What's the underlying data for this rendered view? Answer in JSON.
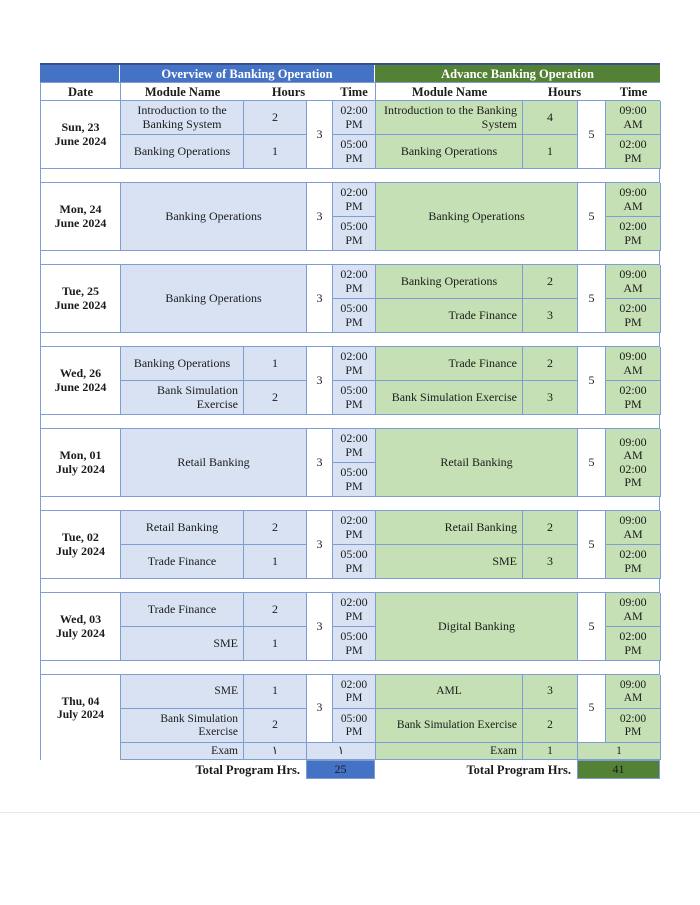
{
  "colors": {
    "header_blue": "#4472C4",
    "header_green": "#538135",
    "light_blue": "#D9E2F3",
    "light_green": "#C5E0B4",
    "total_blue": "#4472C4",
    "total_green": "#538135",
    "border": "#7F9DD4"
  },
  "header": {
    "left_title": "Overview of Banking Operation",
    "right_title": "Advance Banking Operation"
  },
  "columns": {
    "date": "Date",
    "module": "Module Name",
    "hours": "Hours",
    "time": "Time"
  },
  "groups": [
    {
      "date_lines": [
        "Sun, 23",
        "June 2024"
      ],
      "left": {
        "modules": [
          {
            "name": "Introduction to the Banking System",
            "hours": "2",
            "align": "center"
          },
          {
            "name": "Banking Operations",
            "hours": "1",
            "align": "center"
          }
        ],
        "merged": false,
        "total": "3",
        "times": [
          "02:00 PM",
          "05:00 PM"
        ],
        "times_merged": false
      },
      "right": {
        "modules": [
          {
            "name": "Introduction to the Banking System",
            "hours": "4",
            "align": "right"
          },
          {
            "name": "Banking Operations",
            "hours": "1",
            "align": "center"
          }
        ],
        "merged": false,
        "total": "5",
        "times": [
          "09:00 AM",
          "02:00 PM"
        ],
        "times_merged": false
      }
    },
    {
      "date_lines": [
        "Mon, 24",
        "June 2024"
      ],
      "left": {
        "modules": [
          {
            "name": "Banking Operations",
            "align": "center"
          }
        ],
        "merged": true,
        "total": "3",
        "times": [
          "02:00 PM",
          "05:00 PM"
        ],
        "times_merged": false
      },
      "right": {
        "modules": [
          {
            "name": "Banking Operations",
            "align": "center"
          }
        ],
        "merged": true,
        "total": "5",
        "times": [
          "09:00 AM",
          "02:00 PM"
        ],
        "times_merged": false
      }
    },
    {
      "date_lines": [
        "Tue, 25",
        "June 2024"
      ],
      "left": {
        "modules": [
          {
            "name": "Banking Operations",
            "align": "center"
          }
        ],
        "merged": true,
        "total": "3",
        "times": [
          "02:00 PM",
          "05:00 PM"
        ],
        "times_merged": false
      },
      "right": {
        "modules": [
          {
            "name": "Banking Operations",
            "hours": "2",
            "align": "center"
          },
          {
            "name": "Trade Finance",
            "hours": "3",
            "align": "right"
          }
        ],
        "merged": false,
        "total": "5",
        "times": [
          "09:00 AM",
          "02:00 PM"
        ],
        "times_merged": false
      }
    },
    {
      "date_lines": [
        "Wed, 26",
        "June 2024"
      ],
      "left": {
        "modules": [
          {
            "name": "Banking Operations",
            "hours": "1",
            "align": "center"
          },
          {
            "name": "Bank Simulation Exercise",
            "hours": "2",
            "align": "right"
          }
        ],
        "merged": false,
        "total": "3",
        "times": [
          "02:00 PM",
          "05:00 PM"
        ],
        "times_merged": false
      },
      "right": {
        "modules": [
          {
            "name": "Trade Finance",
            "hours": "2",
            "align": "right"
          },
          {
            "name": "Bank Simulation Exercise",
            "hours": "3",
            "align": "right"
          }
        ],
        "merged": false,
        "total": "5",
        "times": [
          "09:00 AM",
          "02:00 PM"
        ],
        "times_merged": false
      }
    },
    {
      "date_lines": [
        "Mon, 01",
        "July 2024"
      ],
      "left": {
        "modules": [
          {
            "name": "Retail Banking",
            "align": "center"
          }
        ],
        "merged": true,
        "total": "3",
        "times": [
          "02:00 PM",
          "05:00 PM"
        ],
        "times_merged": false
      },
      "right": {
        "modules": [
          {
            "name": "Retail Banking",
            "align": "center"
          }
        ],
        "merged": true,
        "total": "5",
        "times": [
          "09:00 AM",
          "02:00 PM"
        ],
        "times_merged": true
      }
    },
    {
      "date_lines": [
        "Tue, 02",
        "July 2024"
      ],
      "left": {
        "modules": [
          {
            "name": "Retail Banking",
            "hours": "2",
            "align": "center"
          },
          {
            "name": "Trade Finance",
            "hours": "1",
            "align": "center"
          }
        ],
        "merged": false,
        "total": "3",
        "times": [
          "02:00 PM",
          "05:00 PM"
        ],
        "times_merged": false
      },
      "right": {
        "modules": [
          {
            "name": "Retail Banking",
            "hours": "2",
            "align": "right"
          },
          {
            "name": "SME",
            "hours": "3",
            "align": "right"
          }
        ],
        "merged": false,
        "total": "5",
        "times": [
          "09:00 AM",
          "02:00 PM"
        ],
        "times_merged": false
      }
    },
    {
      "date_lines": [
        "Wed, 03",
        "July 2024"
      ],
      "left": {
        "modules": [
          {
            "name": "Trade Finance",
            "hours": "2",
            "align": "center"
          },
          {
            "name": "SME",
            "hours": "1",
            "align": "right"
          }
        ],
        "merged": false,
        "total": "3",
        "times": [
          "02:00 PM",
          "05:00 PM"
        ],
        "times_merged": false
      },
      "right": {
        "modules": [
          {
            "name": "Digital Banking",
            "align": "center"
          }
        ],
        "merged": true,
        "total": "5",
        "times": [
          "09:00 AM",
          "02:00 PM"
        ],
        "times_merged": false
      }
    },
    {
      "date_lines": [
        "Thu, 04",
        "July 2024"
      ],
      "left": {
        "modules": [
          {
            "name": "SME",
            "hours": "1",
            "align": "right"
          },
          {
            "name": "Bank Simulation Exercise",
            "hours": "2",
            "align": "right"
          }
        ],
        "merged": false,
        "total": "3",
        "times": [
          "02:00 PM",
          "05:00 PM"
        ],
        "times_merged": false
      },
      "right": {
        "modules": [
          {
            "name": "AML",
            "hours": "3",
            "align": "center"
          },
          {
            "name": "Bank Simulation Exercise",
            "hours": "2",
            "align": "right"
          }
        ],
        "merged": false,
        "total": "5",
        "times": [
          "09:00 AM",
          "02:00 PM"
        ],
        "times_merged": false
      },
      "exam": {
        "left": {
          "label": "Exam",
          "hours": "١",
          "value": "١"
        },
        "right": {
          "label": "Exam",
          "hours": "1",
          "value": "1"
        }
      }
    }
  ],
  "totals": {
    "label": "Total Program Hrs.",
    "left_value": "25",
    "right_value": "41"
  }
}
